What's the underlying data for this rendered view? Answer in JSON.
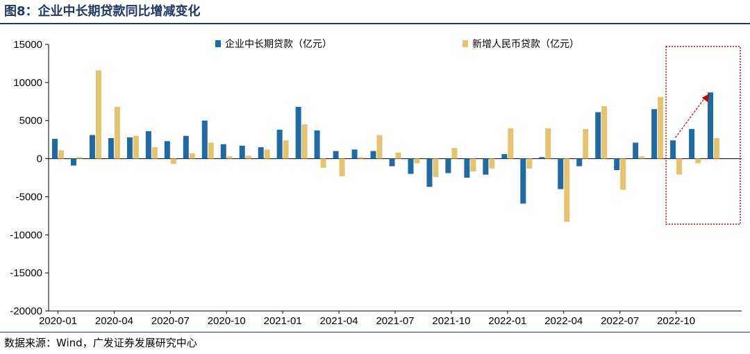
{
  "figure": {
    "title": "图8：企业中长期贷款同比增减变化",
    "source": "数据来源：Wind，广发证券发展研究中心"
  },
  "colors": {
    "series1": "#1f6aa5",
    "series2": "#e4c46e",
    "highlight": "#c00000",
    "axis": "#000000"
  },
  "chart_data": {
    "type": "bar",
    "title": "",
    "xlabel": "",
    "ylabel": "",
    "ylim": [
      -20000,
      15000
    ],
    "yticks": [
      15000,
      10000,
      5000,
      0,
      -5000,
      -10000,
      -15000,
      -20000
    ],
    "grid": false,
    "legend_position": "top",
    "categories": [
      "2020-01",
      "2020-02",
      "2020-03",
      "2020-04",
      "2020-05",
      "2020-06",
      "2020-07",
      "2020-08",
      "2020-09",
      "2020-10",
      "2020-11",
      "2020-12",
      "2021-01",
      "2021-02",
      "2021-03",
      "2021-04",
      "2021-05",
      "2021-06",
      "2021-07",
      "2021-08",
      "2021-09",
      "2021-10",
      "2021-11",
      "2021-12",
      "2022-01",
      "2022-02",
      "2022-03",
      "2022-04",
      "2022-05",
      "2022-06",
      "2022-07",
      "2022-08",
      "2022-09",
      "2022-10",
      "2022-11",
      "2022-12",
      "2023-01"
    ],
    "xtick_labels": [
      "2020-01",
      "2020-04",
      "2020-07",
      "2020-10",
      "2021-01",
      "2021-04",
      "2021-07",
      "2021-10",
      "2022-01",
      "2022-04",
      "2022-07",
      "2022-10"
    ],
    "series": [
      {
        "name": "企业中长期贷款（亿元）",
        "values": [
          2600,
          -900,
          3100,
          2700,
          2800,
          3600,
          2300,
          3000,
          5000,
          1900,
          1700,
          1500,
          3800,
          6800,
          3700,
          1000,
          1200,
          1000,
          -1000,
          -2000,
          -3700,
          -1900,
          -2500,
          -2100,
          600,
          -5900,
          200,
          -4000,
          -1000,
          6100,
          -1500,
          2100,
          6500,
          2400,
          3900,
          8700,
          null
        ]
      },
      {
        "name": "新增人民币贷款（亿元）",
        "values": [
          1100,
          200,
          11600,
          6800,
          3000,
          1500,
          -700,
          700,
          2100,
          300,
          400,
          1200,
          2400,
          4500,
          -1200,
          -2300,
          200,
          3100,
          800,
          -600,
          -2400,
          1400,
          -1700,
          -1300,
          4000,
          -1300,
          4000,
          -8300,
          3900,
          6900,
          -4100,
          300,
          8100,
          -2100,
          -600,
          2700,
          null
        ]
      }
    ],
    "annotations": [
      {
        "type": "dashed-box",
        "from": "2022-10",
        "to": "2023-01"
      },
      {
        "type": "arrow",
        "from": "2022-10",
        "to": "2022-12"
      }
    ]
  }
}
